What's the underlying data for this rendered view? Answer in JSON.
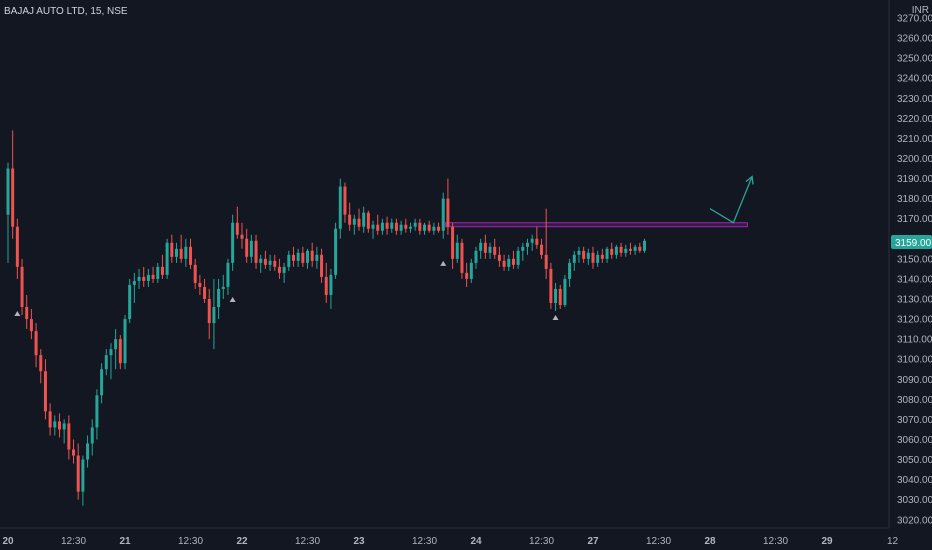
{
  "chart_data": {
    "type": "candlestick",
    "title": "BAJAJ AUTO LTD, 15, NSE",
    "currency": "INR",
    "last_price": "3159.00",
    "ylim": [
      3016,
      3272
    ],
    "y_ticks": [
      "3270.00",
      "3260.00",
      "3250.00",
      "3240.00",
      "3230.00",
      "3220.00",
      "3210.00",
      "3200.00",
      "3190.00",
      "3180.00",
      "3170.00",
      "3160.00",
      "3150.00",
      "3140.00",
      "3130.00",
      "3120.00",
      "3110.00",
      "3100.00",
      "3090.00",
      "3080.00",
      "3070.00",
      "3060.00",
      "3050.00",
      "3040.00",
      "3030.00",
      "3020.00"
    ],
    "x_ticks": [
      {
        "label": "20",
        "bar": 0,
        "bold": true
      },
      {
        "label": "12:30",
        "bar": 14,
        "bold": false
      },
      {
        "label": "21",
        "bar": 25,
        "bold": true
      },
      {
        "label": "12:30",
        "bar": 39,
        "bold": false
      },
      {
        "label": "22",
        "bar": 50,
        "bold": true
      },
      {
        "label": "12:30",
        "bar": 64,
        "bold": false
      },
      {
        "label": "23",
        "bar": 75,
        "bold": true
      },
      {
        "label": "12:30",
        "bar": 89,
        "bold": false
      },
      {
        "label": "24",
        "bar": 100,
        "bold": true
      },
      {
        "label": "12:30",
        "bar": 114,
        "bold": false
      },
      {
        "label": "27",
        "bar": 125,
        "bold": true
      },
      {
        "label": "12:30",
        "bar": 139,
        "bold": false
      },
      {
        "label": "28",
        "bar": 150,
        "bold": true
      },
      {
        "label": "12:30",
        "bar": 164,
        "bold": false
      },
      {
        "label": "29",
        "bar": 175,
        "bold": true
      },
      {
        "label": "12",
        "bar": 189,
        "bold": false
      }
    ],
    "series": [
      {
        "x": 0,
        "o": 3172,
        "h": 3198,
        "l": 3148,
        "c": 3195
      },
      {
        "x": 1,
        "o": 3195,
        "h": 3214,
        "l": 3160,
        "c": 3166
      },
      {
        "x": 2,
        "o": 3166,
        "h": 3170,
        "l": 3140,
        "c": 3146
      },
      {
        "x": 3,
        "o": 3146,
        "h": 3150,
        "l": 3122,
        "c": 3126
      },
      {
        "x": 4,
        "o": 3126,
        "h": 3132,
        "l": 3115,
        "c": 3120
      },
      {
        "x": 5,
        "o": 3120,
        "h": 3125,
        "l": 3110,
        "c": 3114
      },
      {
        "x": 6,
        "o": 3114,
        "h": 3118,
        "l": 3096,
        "c": 3102
      },
      {
        "x": 7,
        "o": 3102,
        "h": 3105,
        "l": 3088,
        "c": 3094
      },
      {
        "x": 8,
        "o": 3094,
        "h": 3100,
        "l": 3070,
        "c": 3074
      },
      {
        "x": 9,
        "o": 3074,
        "h": 3078,
        "l": 3062,
        "c": 3066
      },
      {
        "x": 10,
        "o": 3066,
        "h": 3072,
        "l": 3062,
        "c": 3069
      },
      {
        "x": 11,
        "o": 3069,
        "h": 3073,
        "l": 3061,
        "c": 3065
      },
      {
        "x": 12,
        "o": 3065,
        "h": 3070,
        "l": 3058,
        "c": 3068
      },
      {
        "x": 13,
        "o": 3068,
        "h": 3072,
        "l": 3050,
        "c": 3055
      },
      {
        "x": 14,
        "o": 3055,
        "h": 3060,
        "l": 3048,
        "c": 3052
      },
      {
        "x": 15,
        "o": 3052,
        "h": 3058,
        "l": 3030,
        "c": 3034
      },
      {
        "x": 16,
        "o": 3034,
        "h": 3052,
        "l": 3027,
        "c": 3050
      },
      {
        "x": 17,
        "o": 3050,
        "h": 3062,
        "l": 3046,
        "c": 3058
      },
      {
        "x": 18,
        "o": 3058,
        "h": 3070,
        "l": 3052,
        "c": 3066
      },
      {
        "x": 19,
        "o": 3066,
        "h": 3085,
        "l": 3060,
        "c": 3082
      },
      {
        "x": 20,
        "o": 3082,
        "h": 3098,
        "l": 3078,
        "c": 3095
      },
      {
        "x": 21,
        "o": 3095,
        "h": 3105,
        "l": 3092,
        "c": 3102
      },
      {
        "x": 22,
        "o": 3102,
        "h": 3108,
        "l": 3090,
        "c": 3105
      },
      {
        "x": 23,
        "o": 3105,
        "h": 3115,
        "l": 3095,
        "c": 3110
      },
      {
        "x": 24,
        "o": 3110,
        "h": 3112,
        "l": 3095,
        "c": 3098
      },
      {
        "x": 25,
        "o": 3098,
        "h": 3122,
        "l": 3095,
        "c": 3120
      },
      {
        "x": 26,
        "o": 3120,
        "h": 3140,
        "l": 3118,
        "c": 3137
      },
      {
        "x": 27,
        "o": 3137,
        "h": 3143,
        "l": 3128,
        "c": 3139
      },
      {
        "x": 28,
        "o": 3139,
        "h": 3145,
        "l": 3135,
        "c": 3141
      },
      {
        "x": 29,
        "o": 3141,
        "h": 3146,
        "l": 3136,
        "c": 3139
      },
      {
        "x": 30,
        "o": 3139,
        "h": 3145,
        "l": 3136,
        "c": 3142
      },
      {
        "x": 31,
        "o": 3142,
        "h": 3146,
        "l": 3138,
        "c": 3140
      },
      {
        "x": 32,
        "o": 3140,
        "h": 3148,
        "l": 3138,
        "c": 3146
      },
      {
        "x": 33,
        "o": 3146,
        "h": 3152,
        "l": 3140,
        "c": 3142
      },
      {
        "x": 34,
        "o": 3142,
        "h": 3160,
        "l": 3140,
        "c": 3158
      },
      {
        "x": 35,
        "o": 3158,
        "h": 3162,
        "l": 3148,
        "c": 3151
      },
      {
        "x": 36,
        "o": 3151,
        "h": 3158,
        "l": 3148,
        "c": 3155
      },
      {
        "x": 37,
        "o": 3155,
        "h": 3162,
        "l": 3148,
        "c": 3150
      },
      {
        "x": 38,
        "o": 3150,
        "h": 3160,
        "l": 3146,
        "c": 3156
      },
      {
        "x": 39,
        "o": 3156,
        "h": 3160,
        "l": 3145,
        "c": 3147
      },
      {
        "x": 40,
        "o": 3147,
        "h": 3150,
        "l": 3135,
        "c": 3138
      },
      {
        "x": 41,
        "o": 3138,
        "h": 3142,
        "l": 3132,
        "c": 3136
      },
      {
        "x": 42,
        "o": 3136,
        "h": 3140,
        "l": 3128,
        "c": 3130
      },
      {
        "x": 43,
        "o": 3130,
        "h": 3135,
        "l": 3110,
        "c": 3118
      },
      {
        "x": 44,
        "o": 3118,
        "h": 3140,
        "l": 3105,
        "c": 3126
      },
      {
        "x": 45,
        "o": 3126,
        "h": 3140,
        "l": 3120,
        "c": 3135
      },
      {
        "x": 46,
        "o": 3135,
        "h": 3142,
        "l": 3130,
        "c": 3136
      },
      {
        "x": 47,
        "o": 3136,
        "h": 3150,
        "l": 3132,
        "c": 3148
      },
      {
        "x": 48,
        "o": 3148,
        "h": 3172,
        "l": 3144,
        "c": 3168
      },
      {
        "x": 49,
        "o": 3168,
        "h": 3176,
        "l": 3160,
        "c": 3162
      },
      {
        "x": 50,
        "o": 3162,
        "h": 3168,
        "l": 3155,
        "c": 3160
      },
      {
        "x": 51,
        "o": 3160,
        "h": 3165,
        "l": 3148,
        "c": 3151
      },
      {
        "x": 52,
        "o": 3151,
        "h": 3162,
        "l": 3148,
        "c": 3159
      },
      {
        "x": 53,
        "o": 3159,
        "h": 3162,
        "l": 3145,
        "c": 3148
      },
      {
        "x": 54,
        "o": 3148,
        "h": 3152,
        "l": 3143,
        "c": 3150
      },
      {
        "x": 55,
        "o": 3150,
        "h": 3154,
        "l": 3145,
        "c": 3147
      },
      {
        "x": 56,
        "o": 3147,
        "h": 3152,
        "l": 3144,
        "c": 3149
      },
      {
        "x": 57,
        "o": 3149,
        "h": 3152,
        "l": 3144,
        "c": 3146
      },
      {
        "x": 58,
        "o": 3146,
        "h": 3150,
        "l": 3140,
        "c": 3143
      },
      {
        "x": 59,
        "o": 3143,
        "h": 3148,
        "l": 3138,
        "c": 3146
      },
      {
        "x": 60,
        "o": 3146,
        "h": 3154,
        "l": 3144,
        "c": 3152
      },
      {
        "x": 61,
        "o": 3152,
        "h": 3156,
        "l": 3146,
        "c": 3149
      },
      {
        "x": 62,
        "o": 3149,
        "h": 3155,
        "l": 3146,
        "c": 3153
      },
      {
        "x": 63,
        "o": 3153,
        "h": 3156,
        "l": 3146,
        "c": 3148
      },
      {
        "x": 64,
        "o": 3148,
        "h": 3155,
        "l": 3145,
        "c": 3154
      },
      {
        "x": 65,
        "o": 3154,
        "h": 3158,
        "l": 3146,
        "c": 3149
      },
      {
        "x": 66,
        "o": 3149,
        "h": 3156,
        "l": 3145,
        "c": 3152
      },
      {
        "x": 67,
        "o": 3152,
        "h": 3155,
        "l": 3138,
        "c": 3141
      },
      {
        "x": 68,
        "o": 3141,
        "h": 3148,
        "l": 3128,
        "c": 3132
      },
      {
        "x": 69,
        "o": 3132,
        "h": 3145,
        "l": 3125,
        "c": 3142
      },
      {
        "x": 70,
        "o": 3142,
        "h": 3168,
        "l": 3140,
        "c": 3165
      },
      {
        "x": 71,
        "o": 3165,
        "h": 3190,
        "l": 3160,
        "c": 3186
      },
      {
        "x": 72,
        "o": 3186,
        "h": 3188,
        "l": 3168,
        "c": 3172
      },
      {
        "x": 73,
        "o": 3172,
        "h": 3178,
        "l": 3164,
        "c": 3167
      },
      {
        "x": 74,
        "o": 3167,
        "h": 3172,
        "l": 3162,
        "c": 3170
      },
      {
        "x": 75,
        "o": 3170,
        "h": 3175,
        "l": 3164,
        "c": 3166
      },
      {
        "x": 76,
        "o": 3166,
        "h": 3176,
        "l": 3163,
        "c": 3173
      },
      {
        "x": 77,
        "o": 3173,
        "h": 3174,
        "l": 3163,
        "c": 3165
      },
      {
        "x": 78,
        "o": 3165,
        "h": 3169,
        "l": 3160,
        "c": 3167
      },
      {
        "x": 79,
        "o": 3167,
        "h": 3172,
        "l": 3162,
        "c": 3164
      },
      {
        "x": 80,
        "o": 3164,
        "h": 3170,
        "l": 3162,
        "c": 3168
      },
      {
        "x": 81,
        "o": 3168,
        "h": 3171,
        "l": 3162,
        "c": 3165
      },
      {
        "x": 82,
        "o": 3165,
        "h": 3170,
        "l": 3163,
        "c": 3168
      },
      {
        "x": 83,
        "o": 3168,
        "h": 3170,
        "l": 3162,
        "c": 3164
      },
      {
        "x": 84,
        "o": 3164,
        "h": 3169,
        "l": 3162,
        "c": 3167
      },
      {
        "x": 85,
        "o": 3167,
        "h": 3170,
        "l": 3163,
        "c": 3165
      },
      {
        "x": 86,
        "o": 3165,
        "h": 3168,
        "l": 3163,
        "c": 3166
      },
      {
        "x": 87,
        "o": 3166,
        "h": 3170,
        "l": 3164,
        "c": 3168
      },
      {
        "x": 88,
        "o": 3168,
        "h": 3170,
        "l": 3162,
        "c": 3164
      },
      {
        "x": 89,
        "o": 3164,
        "h": 3168,
        "l": 3162,
        "c": 3167
      },
      {
        "x": 90,
        "o": 3167,
        "h": 3169,
        "l": 3163,
        "c": 3164
      },
      {
        "x": 91,
        "o": 3164,
        "h": 3168,
        "l": 3162,
        "c": 3166
      },
      {
        "x": 92,
        "o": 3166,
        "h": 3168,
        "l": 3163,
        "c": 3164
      },
      {
        "x": 93,
        "o": 3164,
        "h": 3183,
        "l": 3160,
        "c": 3180
      },
      {
        "x": 94,
        "o": 3180,
        "h": 3190,
        "l": 3162,
        "c": 3166
      },
      {
        "x": 95,
        "o": 3166,
        "h": 3168,
        "l": 3145,
        "c": 3150
      },
      {
        "x": 96,
        "o": 3150,
        "h": 3162,
        "l": 3148,
        "c": 3158
      },
      {
        "x": 97,
        "o": 3158,
        "h": 3160,
        "l": 3140,
        "c": 3143
      },
      {
        "x": 98,
        "o": 3143,
        "h": 3148,
        "l": 3136,
        "c": 3140
      },
      {
        "x": 99,
        "o": 3140,
        "h": 3150,
        "l": 3138,
        "c": 3148
      },
      {
        "x": 100,
        "o": 3148,
        "h": 3156,
        "l": 3145,
        "c": 3154
      },
      {
        "x": 101,
        "o": 3154,
        "h": 3160,
        "l": 3150,
        "c": 3158
      },
      {
        "x": 102,
        "o": 3158,
        "h": 3162,
        "l": 3150,
        "c": 3153
      },
      {
        "x": 103,
        "o": 3153,
        "h": 3158,
        "l": 3150,
        "c": 3156
      },
      {
        "x": 104,
        "o": 3156,
        "h": 3160,
        "l": 3150,
        "c": 3152
      },
      {
        "x": 105,
        "o": 3152,
        "h": 3156,
        "l": 3146,
        "c": 3149
      },
      {
        "x": 106,
        "o": 3149,
        "h": 3152,
        "l": 3144,
        "c": 3146
      },
      {
        "x": 107,
        "o": 3146,
        "h": 3152,
        "l": 3144,
        "c": 3150
      },
      {
        "x": 108,
        "o": 3150,
        "h": 3154,
        "l": 3145,
        "c": 3147
      },
      {
        "x": 109,
        "o": 3147,
        "h": 3156,
        "l": 3145,
        "c": 3154
      },
      {
        "x": 110,
        "o": 3154,
        "h": 3158,
        "l": 3149,
        "c": 3156
      },
      {
        "x": 111,
        "o": 3156,
        "h": 3160,
        "l": 3152,
        "c": 3158
      },
      {
        "x": 112,
        "o": 3158,
        "h": 3162,
        "l": 3154,
        "c": 3160
      },
      {
        "x": 113,
        "o": 3160,
        "h": 3166,
        "l": 3155,
        "c": 3157
      },
      {
        "x": 114,
        "o": 3157,
        "h": 3160,
        "l": 3150,
        "c": 3152
      },
      {
        "x": 115,
        "o": 3152,
        "h": 3175,
        "l": 3140,
        "c": 3145
      },
      {
        "x": 116,
        "o": 3145,
        "h": 3148,
        "l": 3125,
        "c": 3128
      },
      {
        "x": 117,
        "o": 3128,
        "h": 3138,
        "l": 3124,
        "c": 3135
      },
      {
        "x": 118,
        "o": 3135,
        "h": 3137,
        "l": 3125,
        "c": 3127
      },
      {
        "x": 119,
        "o": 3127,
        "h": 3142,
        "l": 3126,
        "c": 3140
      },
      {
        "x": 120,
        "o": 3140,
        "h": 3150,
        "l": 3136,
        "c": 3148
      },
      {
        "x": 121,
        "o": 3148,
        "h": 3154,
        "l": 3144,
        "c": 3152
      },
      {
        "x": 122,
        "o": 3152,
        "h": 3156,
        "l": 3148,
        "c": 3154
      },
      {
        "x": 123,
        "o": 3154,
        "h": 3156,
        "l": 3148,
        "c": 3150
      },
      {
        "x": 124,
        "o": 3150,
        "h": 3155,
        "l": 3147,
        "c": 3153
      },
      {
        "x": 125,
        "o": 3153,
        "h": 3156,
        "l": 3145,
        "c": 3148
      },
      {
        "x": 126,
        "o": 3148,
        "h": 3154,
        "l": 3146,
        "c": 3152
      },
      {
        "x": 127,
        "o": 3152,
        "h": 3155,
        "l": 3148,
        "c": 3150
      },
      {
        "x": 128,
        "o": 3150,
        "h": 3156,
        "l": 3148,
        "c": 3155
      },
      {
        "x": 129,
        "o": 3155,
        "h": 3158,
        "l": 3150,
        "c": 3152
      },
      {
        "x": 130,
        "o": 3152,
        "h": 3157,
        "l": 3150,
        "c": 3156
      },
      {
        "x": 131,
        "o": 3156,
        "h": 3158,
        "l": 3151,
        "c": 3153
      },
      {
        "x": 132,
        "o": 3153,
        "h": 3157,
        "l": 3151,
        "c": 3155
      },
      {
        "x": 133,
        "o": 3155,
        "h": 3158,
        "l": 3152,
        "c": 3154
      },
      {
        "x": 134,
        "o": 3154,
        "h": 3157,
        "l": 3152,
        "c": 3156
      },
      {
        "x": 135,
        "o": 3156,
        "h": 3158,
        "l": 3153,
        "c": 3154
      },
      {
        "x": 136,
        "o": 3154,
        "h": 3160,
        "l": 3153,
        "c": 3159
      }
    ],
    "zone": {
      "x_start": 93.5,
      "x_end": 158,
      "y_low": 3166,
      "y_high": 3168
    },
    "projection": [
      {
        "x": 150,
        "y": 3175
      },
      {
        "x": 155,
        "y": 3168
      },
      {
        "x": 159,
        "y": 3191
      }
    ],
    "markers": [
      {
        "x": 2,
        "price": 3123
      },
      {
        "x": 48,
        "price": 3130
      },
      {
        "x": 93,
        "price": 3148
      },
      {
        "x": 117,
        "price": 3121
      }
    ],
    "colors": {
      "up": "#26a69a",
      "down": "#ef5350",
      "zone": "#9c27b0",
      "projection": "#26a69a",
      "marker": "#b2b5be",
      "background": "#131722",
      "axis": "#b2b5be"
    }
  }
}
